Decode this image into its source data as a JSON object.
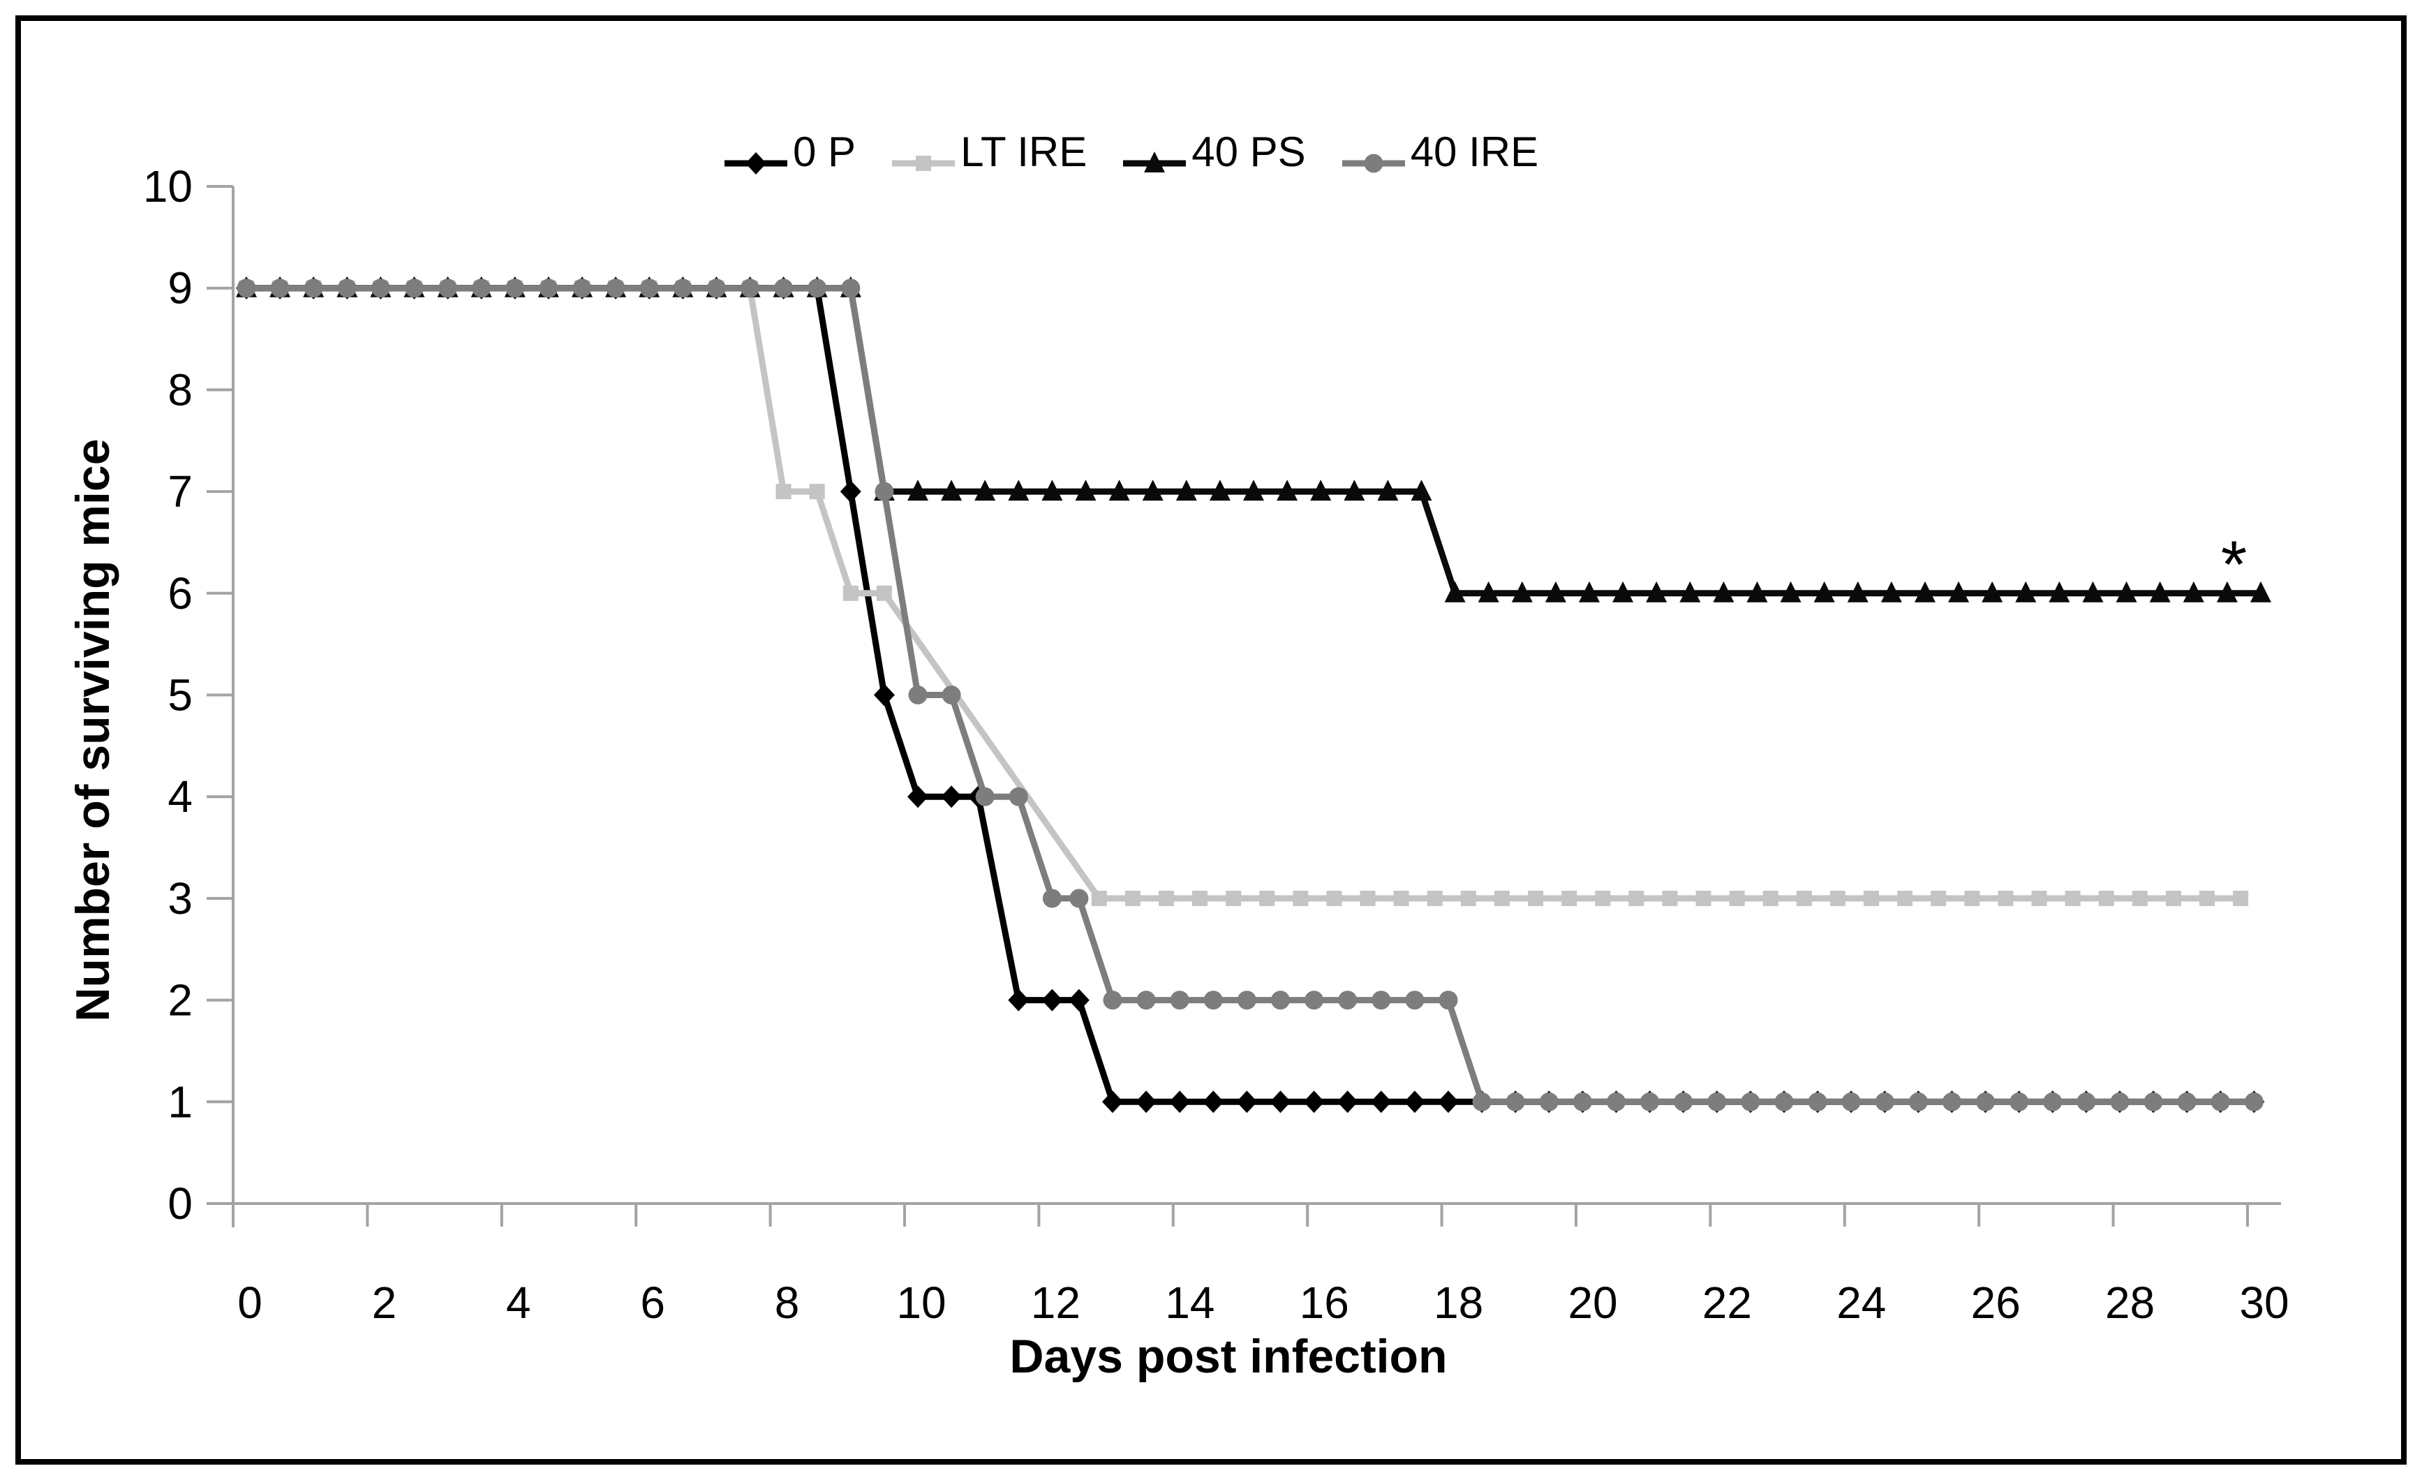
{
  "figure": {
    "background": "#ffffff",
    "border_color": "#000000",
    "axis_color": "#a3a3a3",
    "text_color": "#000000"
  },
  "chart_data": {
    "type": "line",
    "title": "",
    "xlabel": "Days post infection",
    "ylabel": "Number of surviving mice",
    "xlim": [
      0,
      30.5
    ],
    "ylim": [
      0,
      10
    ],
    "grid": false,
    "legend_position": "top-center",
    "x_ticks": [
      0,
      2,
      4,
      6,
      8,
      10,
      12,
      14,
      16,
      18,
      20,
      22,
      24,
      26,
      28,
      30
    ],
    "y_ticks": [
      0,
      1,
      2,
      3,
      4,
      5,
      6,
      7,
      8,
      9,
      10
    ],
    "annotations": [
      {
        "text": "*",
        "x": 29.6,
        "y": 6.55
      }
    ],
    "series": [
      {
        "name": "0 P",
        "color": "#000000",
        "marker": "diamond",
        "points": [
          [
            0,
            9
          ],
          [
            0.5,
            9
          ],
          [
            1,
            9
          ],
          [
            1.5,
            9
          ],
          [
            2,
            9
          ],
          [
            2.5,
            9
          ],
          [
            3,
            9
          ],
          [
            3.5,
            9
          ],
          [
            4,
            9
          ],
          [
            4.5,
            9
          ],
          [
            5,
            9
          ],
          [
            5.5,
            9
          ],
          [
            6,
            9
          ],
          [
            6.5,
            9
          ],
          [
            7,
            9
          ],
          [
            7.5,
            9
          ],
          [
            8,
            9
          ],
          [
            8.5,
            9
          ],
          [
            9,
            7
          ],
          [
            9.5,
            5
          ],
          [
            10,
            4
          ],
          [
            10.5,
            4
          ],
          [
            10.9,
            4
          ],
          [
            11.5,
            2
          ],
          [
            12,
            2
          ],
          [
            12.4,
            2
          ],
          [
            12.9,
            1
          ],
          [
            13.4,
            1
          ],
          [
            13.9,
            1
          ],
          [
            14.4,
            1
          ],
          [
            14.9,
            1
          ],
          [
            15.4,
            1
          ],
          [
            15.9,
            1
          ],
          [
            16.4,
            1
          ],
          [
            16.9,
            1
          ],
          [
            17.4,
            1
          ],
          [
            17.9,
            1
          ],
          [
            18.4,
            1
          ],
          [
            18.9,
            1
          ],
          [
            19.4,
            1
          ],
          [
            19.9,
            1
          ],
          [
            20.4,
            1
          ],
          [
            20.9,
            1
          ],
          [
            21.4,
            1
          ],
          [
            21.9,
            1
          ],
          [
            22.4,
            1
          ],
          [
            22.9,
            1
          ],
          [
            23.4,
            1
          ],
          [
            23.9,
            1
          ],
          [
            24.4,
            1
          ],
          [
            24.9,
            1
          ],
          [
            25.4,
            1
          ],
          [
            25.9,
            1
          ],
          [
            26.4,
            1
          ],
          [
            26.9,
            1
          ],
          [
            27.4,
            1
          ],
          [
            27.9,
            1
          ],
          [
            28.4,
            1
          ],
          [
            28.9,
            1
          ],
          [
            29.4,
            1
          ],
          [
            29.9,
            1
          ]
        ]
      },
      {
        "name": "LT IRE",
        "color": "#c4c4c4",
        "marker": "square",
        "points": [
          [
            0,
            9
          ],
          [
            0.5,
            9
          ],
          [
            1,
            9
          ],
          [
            1.5,
            9
          ],
          [
            2,
            9
          ],
          [
            2.5,
            9
          ],
          [
            3,
            9
          ],
          [
            3.5,
            9
          ],
          [
            4,
            9
          ],
          [
            4.5,
            9
          ],
          [
            5,
            9
          ],
          [
            5.5,
            9
          ],
          [
            6,
            9
          ],
          [
            6.5,
            9
          ],
          [
            7,
            9
          ],
          [
            7.5,
            9
          ],
          [
            8,
            7
          ],
          [
            8.5,
            7
          ],
          [
            9,
            6
          ],
          [
            9.5,
            6
          ],
          [
            12.7,
            3
          ],
          [
            13.2,
            3
          ],
          [
            13.7,
            3
          ],
          [
            14.2,
            3
          ],
          [
            14.7,
            3
          ],
          [
            15.2,
            3
          ],
          [
            15.7,
            3
          ],
          [
            16.2,
            3
          ],
          [
            16.7,
            3
          ],
          [
            17.2,
            3
          ],
          [
            17.7,
            3
          ],
          [
            18.2,
            3
          ],
          [
            18.7,
            3
          ],
          [
            19.2,
            3
          ],
          [
            19.7,
            3
          ],
          [
            20.2,
            3
          ],
          [
            20.7,
            3
          ],
          [
            21.2,
            3
          ],
          [
            21.7,
            3
          ],
          [
            22.2,
            3
          ],
          [
            22.7,
            3
          ],
          [
            23.2,
            3
          ],
          [
            23.7,
            3
          ],
          [
            24.2,
            3
          ],
          [
            24.7,
            3
          ],
          [
            25.2,
            3
          ],
          [
            25.7,
            3
          ],
          [
            26.2,
            3
          ],
          [
            26.7,
            3
          ],
          [
            27.2,
            3
          ],
          [
            27.7,
            3
          ],
          [
            28.2,
            3
          ],
          [
            28.7,
            3
          ],
          [
            29.2,
            3
          ],
          [
            29.7,
            3
          ]
        ]
      },
      {
        "name": "40 PS",
        "color": "#0a0a0a",
        "marker": "triangle",
        "points": [
          [
            0,
            9
          ],
          [
            0.5,
            9
          ],
          [
            1,
            9
          ],
          [
            1.5,
            9
          ],
          [
            2,
            9
          ],
          [
            2.5,
            9
          ],
          [
            3,
            9
          ],
          [
            3.5,
            9
          ],
          [
            4,
            9
          ],
          [
            4.5,
            9
          ],
          [
            5,
            9
          ],
          [
            5.5,
            9
          ],
          [
            6,
            9
          ],
          [
            6.5,
            9
          ],
          [
            7,
            9
          ],
          [
            7.5,
            9
          ],
          [
            8,
            9
          ],
          [
            8.5,
            9
          ],
          [
            9,
            9
          ],
          [
            9.5,
            7
          ],
          [
            10,
            7
          ],
          [
            10.5,
            7
          ],
          [
            11,
            7
          ],
          [
            11.5,
            7
          ],
          [
            12,
            7
          ],
          [
            12.5,
            7
          ],
          [
            13,
            7
          ],
          [
            13.5,
            7
          ],
          [
            14,
            7
          ],
          [
            14.5,
            7
          ],
          [
            15,
            7
          ],
          [
            15.5,
            7
          ],
          [
            16,
            7
          ],
          [
            16.5,
            7
          ],
          [
            17,
            7
          ],
          [
            17.5,
            7
          ],
          [
            18,
            6
          ],
          [
            18.5,
            6
          ],
          [
            19,
            6
          ],
          [
            19.5,
            6
          ],
          [
            20,
            6
          ],
          [
            20.5,
            6
          ],
          [
            21,
            6
          ],
          [
            21.5,
            6
          ],
          [
            22,
            6
          ],
          [
            22.5,
            6
          ],
          [
            23,
            6
          ],
          [
            23.5,
            6
          ],
          [
            24,
            6
          ],
          [
            24.5,
            6
          ],
          [
            25,
            6
          ],
          [
            25.5,
            6
          ],
          [
            26,
            6
          ],
          [
            26.5,
            6
          ],
          [
            27,
            6
          ],
          [
            27.5,
            6
          ],
          [
            28,
            6
          ],
          [
            28.5,
            6
          ],
          [
            29,
            6
          ],
          [
            29.5,
            6
          ],
          [
            30,
            6
          ]
        ]
      },
      {
        "name": "40 IRE",
        "color": "#7d7d7d",
        "marker": "circle",
        "points": [
          [
            0,
            9
          ],
          [
            0.5,
            9
          ],
          [
            1,
            9
          ],
          [
            1.5,
            9
          ],
          [
            2,
            9
          ],
          [
            2.5,
            9
          ],
          [
            3,
            9
          ],
          [
            3.5,
            9
          ],
          [
            4,
            9
          ],
          [
            4.5,
            9
          ],
          [
            5,
            9
          ],
          [
            5.5,
            9
          ],
          [
            6,
            9
          ],
          [
            6.5,
            9
          ],
          [
            7,
            9
          ],
          [
            7.5,
            9
          ],
          [
            8,
            9
          ],
          [
            8.5,
            9
          ],
          [
            9,
            9
          ],
          [
            9.5,
            7
          ],
          [
            10,
            5
          ],
          [
            10.5,
            5
          ],
          [
            11,
            4
          ],
          [
            11.5,
            4
          ],
          [
            12,
            3
          ],
          [
            12.4,
            3
          ],
          [
            12.9,
            2
          ],
          [
            13.4,
            2
          ],
          [
            13.9,
            2
          ],
          [
            14.4,
            2
          ],
          [
            14.9,
            2
          ],
          [
            15.4,
            2
          ],
          [
            15.9,
            2
          ],
          [
            16.4,
            2
          ],
          [
            16.9,
            2
          ],
          [
            17.4,
            2
          ],
          [
            17.9,
            2
          ],
          [
            18.4,
            1
          ],
          [
            18.9,
            1
          ],
          [
            19.4,
            1
          ],
          [
            19.9,
            1
          ],
          [
            20.4,
            1
          ],
          [
            20.9,
            1
          ],
          [
            21.4,
            1
          ],
          [
            21.9,
            1
          ],
          [
            22.4,
            1
          ],
          [
            22.9,
            1
          ],
          [
            23.4,
            1
          ],
          [
            23.9,
            1
          ],
          [
            24.4,
            1
          ],
          [
            24.9,
            1
          ],
          [
            25.4,
            1
          ],
          [
            25.9,
            1
          ],
          [
            26.4,
            1
          ],
          [
            26.9,
            1
          ],
          [
            27.4,
            1
          ],
          [
            27.9,
            1
          ],
          [
            28.4,
            1
          ],
          [
            28.9,
            1
          ],
          [
            29.4,
            1
          ],
          [
            29.9,
            1
          ]
        ]
      }
    ]
  }
}
